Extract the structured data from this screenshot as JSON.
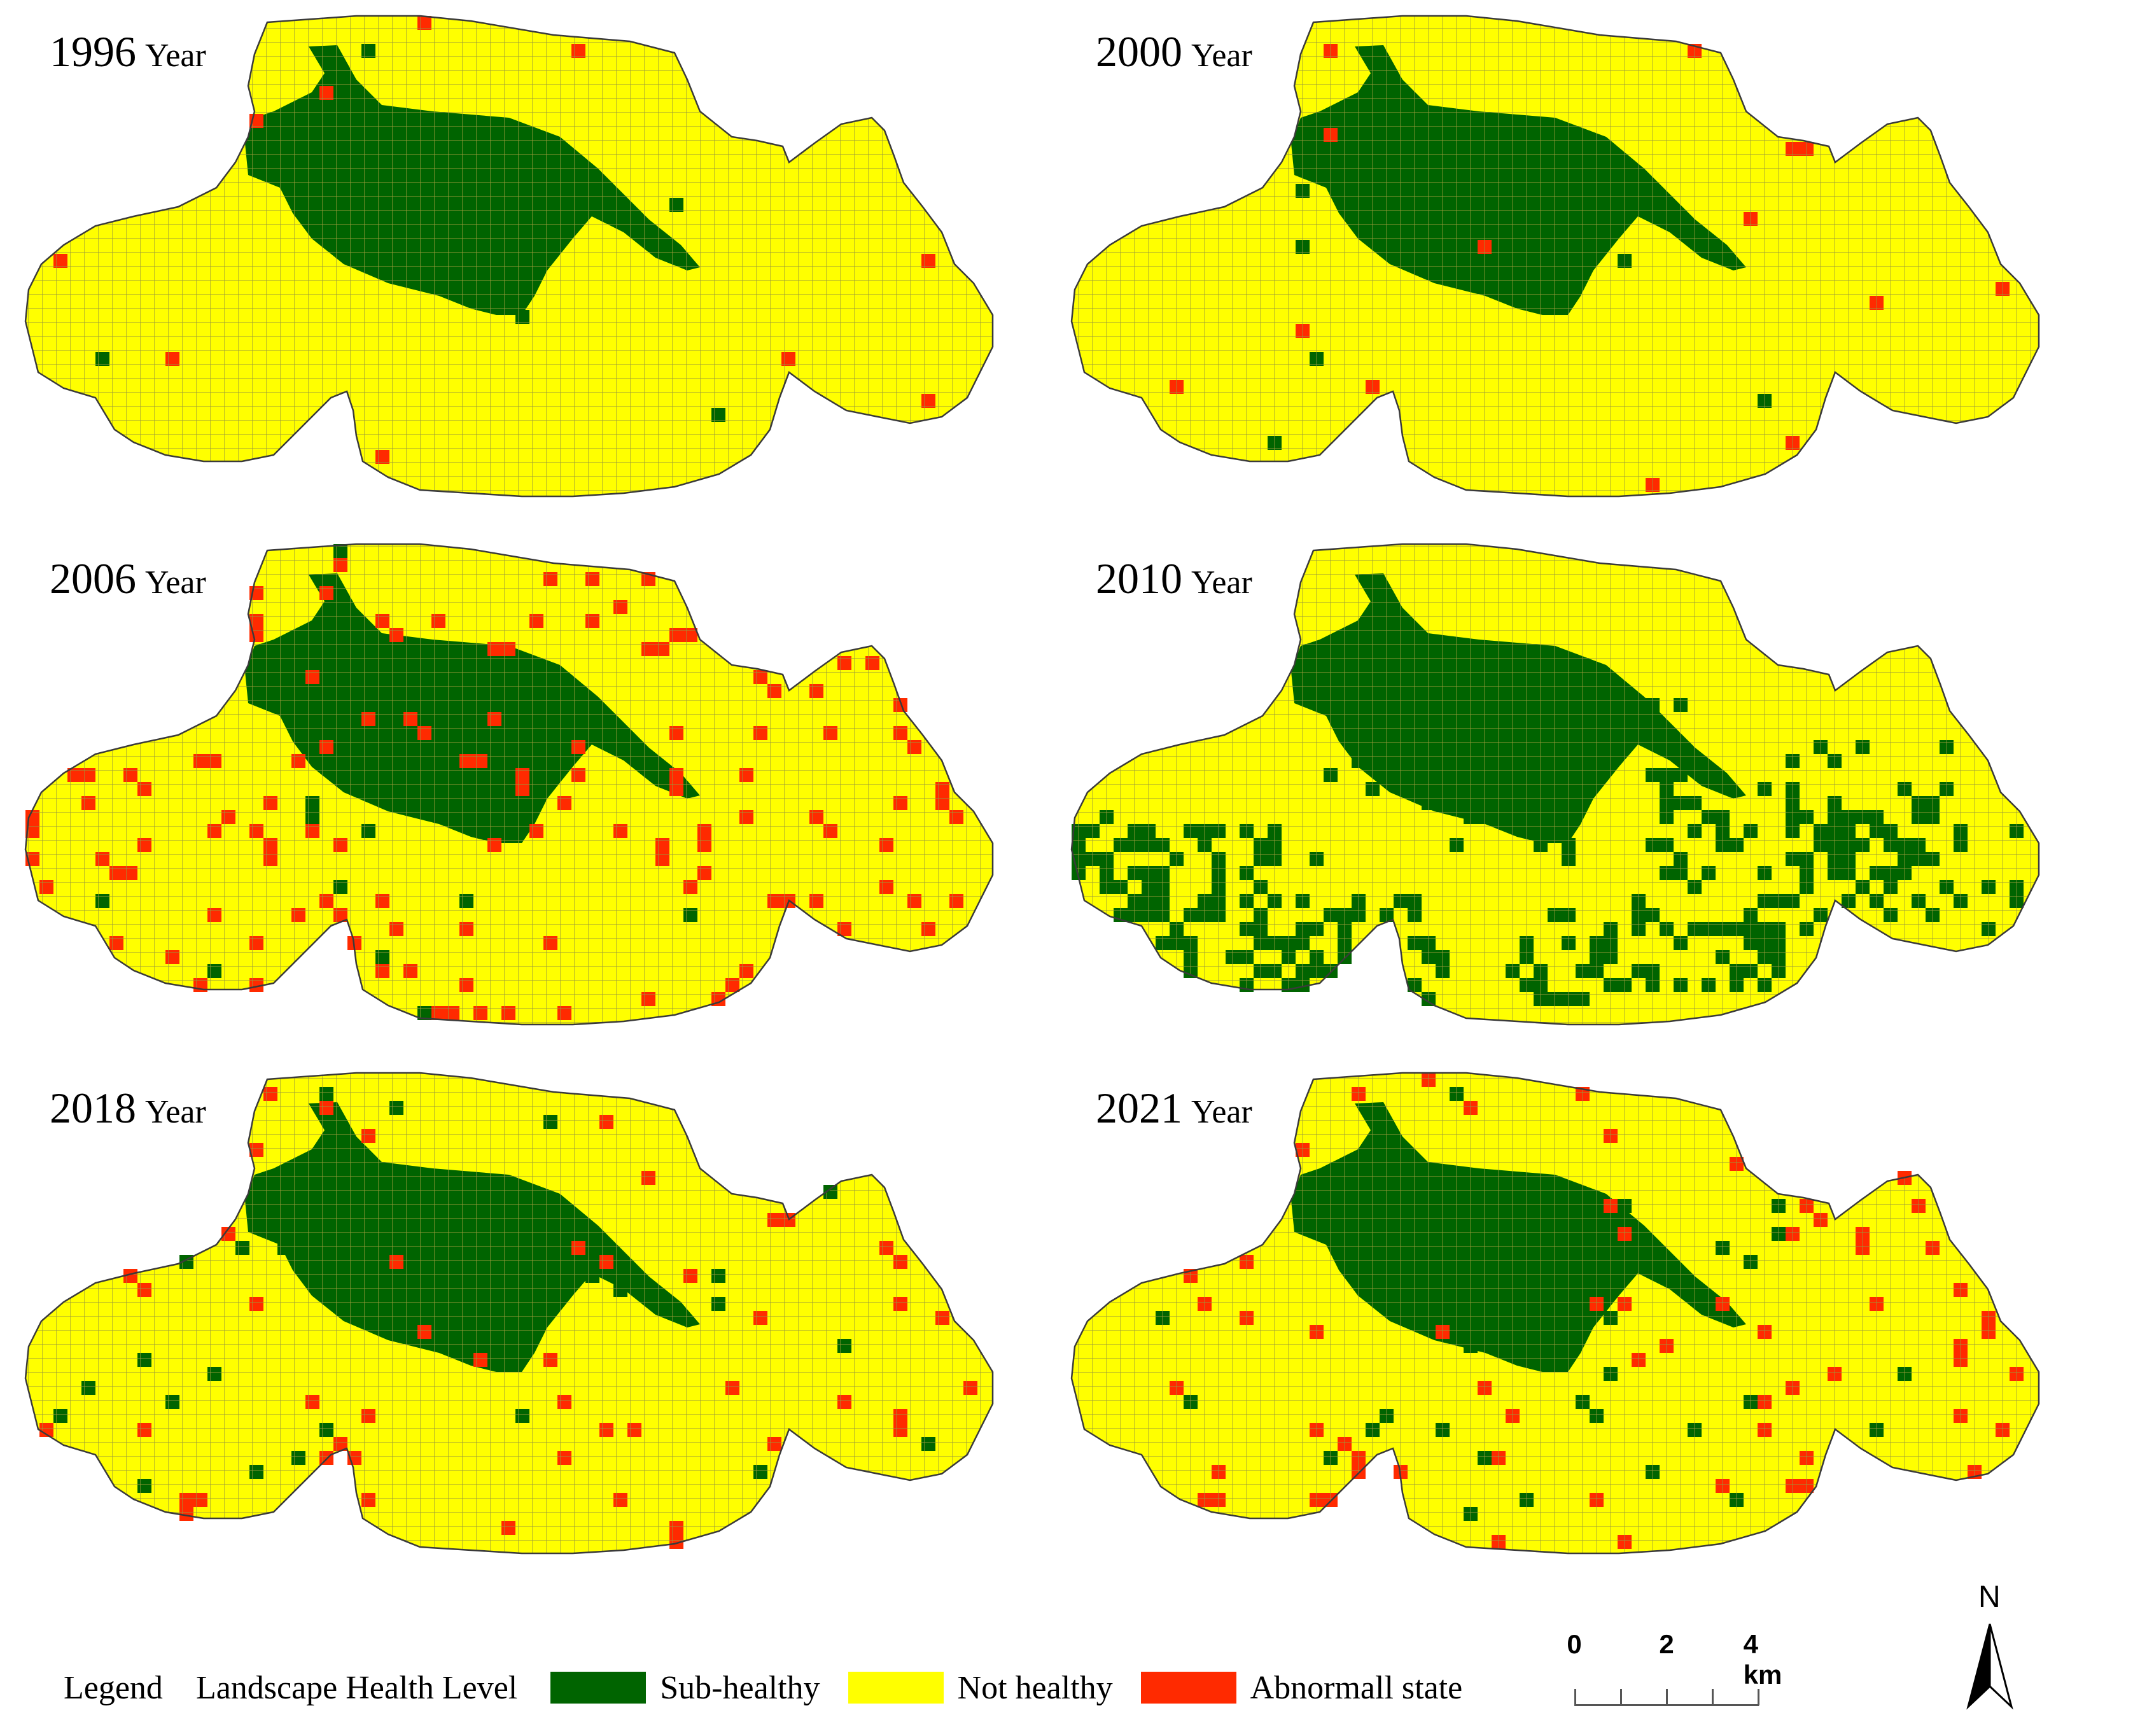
{
  "panels": [
    {
      "year": "1996",
      "word": "Year"
    },
    {
      "year": "2000",
      "word": "Year"
    },
    {
      "year": "2006",
      "word": "Year"
    },
    {
      "year": "2010",
      "word": "Year"
    },
    {
      "year": "2018",
      "word": "Year"
    },
    {
      "year": "2021",
      "word": "Year"
    }
  ],
  "legend": {
    "title": "Legend",
    "subtitle": "Landscape Health Level",
    "items": [
      {
        "label": "Sub-healthy",
        "color": "#006400"
      },
      {
        "label": "Not healthy",
        "color": "#FFFF00"
      },
      {
        "label": "Abnormall state",
        "color": "#FF2A00"
      }
    ]
  },
  "scale_bar": {
    "labels": [
      "0",
      "2",
      "4 km"
    ]
  },
  "north_arrow": {
    "label": "N"
  },
  "colors": {
    "grid_line": "#9a9a3a",
    "outline": "#3a3a3a"
  }
}
